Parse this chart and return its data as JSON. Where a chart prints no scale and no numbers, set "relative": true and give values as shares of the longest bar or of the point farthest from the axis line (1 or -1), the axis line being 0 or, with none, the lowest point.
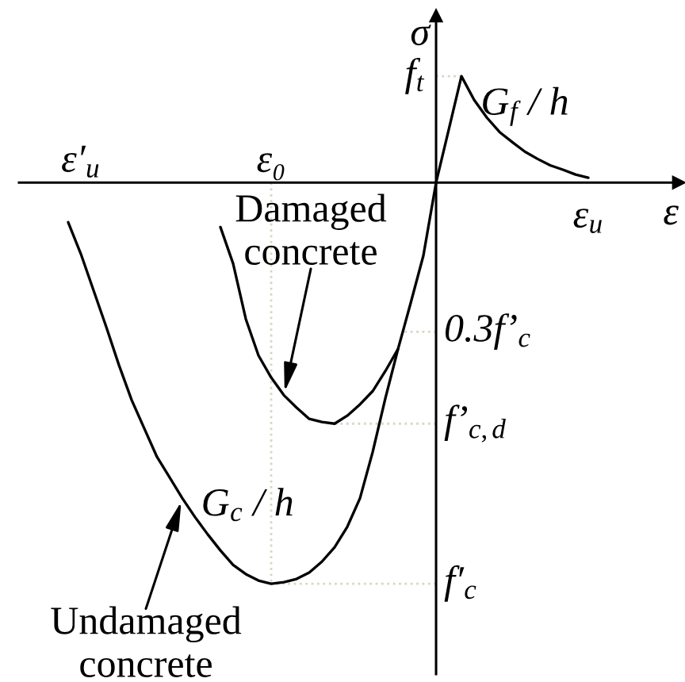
{
  "chart_data": {
    "type": "line",
    "relative": true,
    "xlabel": "ε",
    "ylabel": "σ",
    "categories": [
      null,
      "ε′$_{u}$",
      null,
      null,
      null,
      null,
      null,
      null,
      null,
      null,
      null,
      null,
      null,
      null,
      null,
      null,
      "ε₀",
      null,
      null,
      null,
      null,
      null,
      null,
      null,
      null,
      null,
      null,
      null,
      null,
      null,
      null,
      null,
      null,
      null,
      null,
      null,
      null,
      null,
      null,
      null,
      null,
      "ε$_{u}$"
    ],
    "series": [
      {
        "name": "Undamaged concrete",
        "color": "#000000",
        "values": [
          -0.099,
          -0.178,
          -0.269,
          -0.36,
          -0.455,
          -0.542,
          -0.613,
          -0.684,
          -0.735,
          -0.787,
          -0.834,
          -0.877,
          -0.917,
          -0.953,
          -0.976,
          -0.992,
          -1.0,
          -0.996,
          -0.988,
          -0.972,
          -0.945,
          -0.909,
          -0.858,
          -0.787,
          -0.672,
          -0.538,
          -0.415,
          -0.3,
          -0.182,
          0,
          0.132,
          0.265,
          0.206,
          0.162,
          0.126,
          0.101,
          0.077,
          0.059,
          0.043,
          0.032,
          0.02,
          0.012
        ]
      },
      {
        "name": "Damaged concrete",
        "color": "#000000",
        "values": [
          null,
          null,
          null,
          null,
          null,
          null,
          null,
          null,
          null,
          null,
          null,
          null,
          -0.111,
          -0.202,
          -0.34,
          -0.431,
          -0.486,
          -0.53,
          -0.561,
          -0.589,
          -0.597,
          -0.601,
          -0.581,
          -0.553,
          -0.52,
          -0.47,
          -0.415,
          null,
          null,
          null,
          null,
          null,
          null,
          null,
          null,
          null,
          null,
          null,
          null,
          null,
          null,
          null
        ]
      }
    ],
    "ref_lines": [
      {
        "axis": "y",
        "value": 0.265,
        "label": "f$_{t}$",
        "color": "#d6d6c6",
        "line_style": "dotted"
      },
      {
        "axis": "y",
        "value": -0.372,
        "label": "0.3f’$_{c}$",
        "color": "#d6d6c6",
        "line_style": "dotted"
      },
      {
        "axis": "y",
        "value": -0.601,
        "label": "f’$_{c,d}$",
        "color": "#d6d6c6",
        "line_style": "dotted"
      },
      {
        "axis": "y",
        "value": -1.0,
        "label": "f′$_{c}$",
        "color": "#d6d6c6",
        "line_style": "dotted"
      },
      {
        "axis": "x",
        "value": "ε₀",
        "color": "#d6d6c6",
        "line_style": "dotted"
      }
    ],
    "annotations": [
      "G$_{f}$ / h",
      "G$_{c}$ / h"
    ]
  }
}
